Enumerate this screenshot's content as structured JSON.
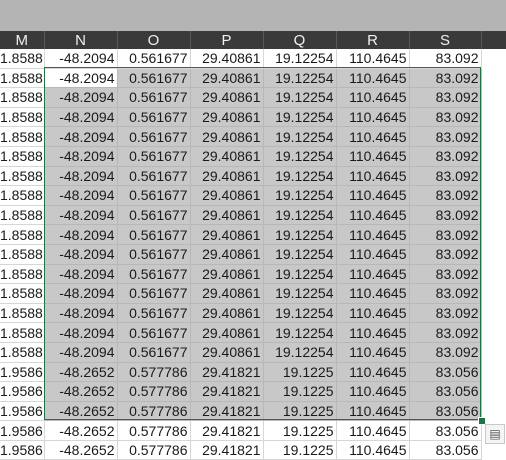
{
  "columns": [
    "M",
    "N",
    "O",
    "P",
    "Q",
    "R",
    "S"
  ],
  "rows": [
    [
      "1.8588",
      "-48.2094",
      "0.561677",
      "29.40861",
      "19.12254",
      "110.4645",
      "83.092"
    ],
    [
      "1.8588",
      "-48.2094",
      "0.561677",
      "29.40861",
      "19.12254",
      "110.4645",
      "83.092"
    ],
    [
      "1.8588",
      "-48.2094",
      "0.561677",
      "29.40861",
      "19.12254",
      "110.4645",
      "83.092"
    ],
    [
      "1.8588",
      "-48.2094",
      "0.561677",
      "29.40861",
      "19.12254",
      "110.4645",
      "83.092"
    ],
    [
      "1.8588",
      "-48.2094",
      "0.561677",
      "29.40861",
      "19.12254",
      "110.4645",
      "83.092"
    ],
    [
      "1.8588",
      "-48.2094",
      "0.561677",
      "29.40861",
      "19.12254",
      "110.4645",
      "83.092"
    ],
    [
      "1.8588",
      "-48.2094",
      "0.561677",
      "29.40861",
      "19.12254",
      "110.4645",
      "83.092"
    ],
    [
      "1.8588",
      "-48.2094",
      "0.561677",
      "29.40861",
      "19.12254",
      "110.4645",
      "83.092"
    ],
    [
      "1.8588",
      "-48.2094",
      "0.561677",
      "29.40861",
      "19.12254",
      "110.4645",
      "83.092"
    ],
    [
      "1.8588",
      "-48.2094",
      "0.561677",
      "29.40861",
      "19.12254",
      "110.4645",
      "83.092"
    ],
    [
      "1.8588",
      "-48.2094",
      "0.561677",
      "29.40861",
      "19.12254",
      "110.4645",
      "83.092"
    ],
    [
      "1.8588",
      "-48.2094",
      "0.561677",
      "29.40861",
      "19.12254",
      "110.4645",
      "83.092"
    ],
    [
      "1.8588",
      "-48.2094",
      "0.561677",
      "29.40861",
      "19.12254",
      "110.4645",
      "83.092"
    ],
    [
      "1.8588",
      "-48.2094",
      "0.561677",
      "29.40861",
      "19.12254",
      "110.4645",
      "83.092"
    ],
    [
      "1.8588",
      "-48.2094",
      "0.561677",
      "29.40861",
      "19.12254",
      "110.4645",
      "83.092"
    ],
    [
      "1.8588",
      "-48.2094",
      "0.561677",
      "29.40861",
      "19.12254",
      "110.4645",
      "83.092"
    ],
    [
      "1.9586",
      "-48.2652",
      "0.577786",
      "29.41821",
      "19.1225",
      "110.4645",
      "83.056"
    ],
    [
      "1.9586",
      "-48.2652",
      "0.577786",
      "29.41821",
      "19.1225",
      "110.4645",
      "83.056"
    ],
    [
      "1.9586",
      "-48.2652",
      "0.577786",
      "29.41821",
      "19.1225",
      "110.4645",
      "83.056"
    ],
    [
      "1.9586",
      "-48.2652",
      "0.577786",
      "29.41821",
      "19.1225",
      "110.4645",
      "83.056"
    ],
    [
      "1.9586",
      "-48.2652",
      "0.577786",
      "29.41821",
      "19.1225",
      "110.4645",
      "83.056"
    ]
  ],
  "selection": {
    "first_row": 1,
    "last_row": 18,
    "first_col": 1,
    "last_col": 6,
    "active_row": 1,
    "active_col": 1,
    "accent": "#217346"
  },
  "quick_analysis_icon": "paste-options-icon"
}
